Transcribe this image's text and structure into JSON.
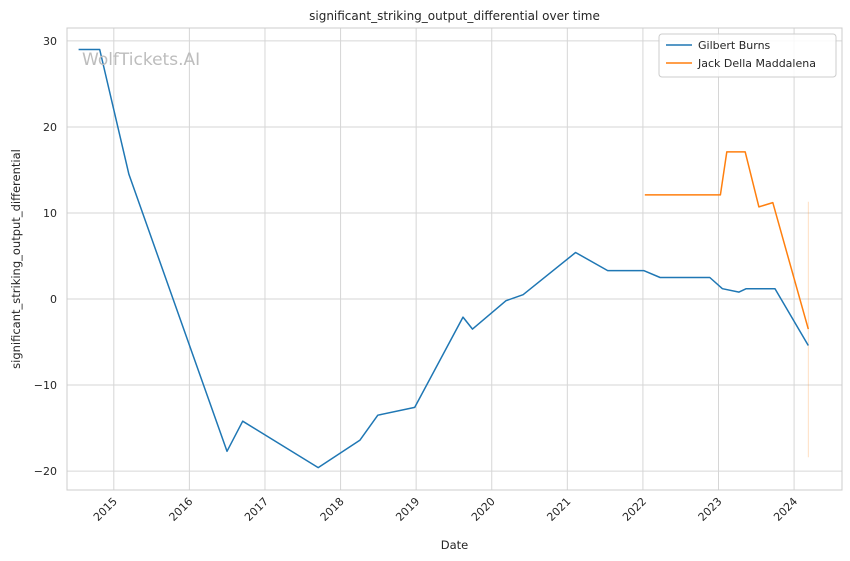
{
  "chart_data": {
    "type": "line",
    "title": "significant_striking_output_differential over time",
    "xlabel": "Date",
    "ylabel": "significant_striking_output_differential",
    "watermark": "WolfTickets.AI",
    "x_ticks": [
      "2015",
      "2016",
      "2017",
      "2018",
      "2019",
      "2020",
      "2021",
      "2022",
      "2023",
      "2024"
    ],
    "y_ticks": [
      30,
      20,
      10,
      0,
      -10,
      -20
    ],
    "y_tick_labels": [
      "30",
      "20",
      "10",
      "0",
      "−10",
      "−20"
    ],
    "xlim": [
      "2014-05-20",
      "2024-08-20"
    ],
    "ylim": [
      -22.2,
      31.5
    ],
    "grid": true,
    "legend_position": "top-right",
    "series": [
      {
        "name": "Gilbert Burns",
        "color": "#1f77b4",
        "points": [
          [
            "2014-07-15",
            29
          ],
          [
            "2014-10-25",
            29
          ],
          [
            "2015-03-15",
            14.5
          ],
          [
            "2016-07-01",
            -17.7
          ],
          [
            "2016-09-15",
            -14.2
          ],
          [
            "2017-09-15",
            -19.6
          ],
          [
            "2018-04-05",
            -16.4
          ],
          [
            "2018-06-30",
            -13.5
          ],
          [
            "2018-12-25",
            -12.6
          ],
          [
            "2019-08-15",
            -2.1
          ],
          [
            "2019-09-30",
            -3.5
          ],
          [
            "2020-03-10",
            -0.2
          ],
          [
            "2020-06-01",
            0.5
          ],
          [
            "2021-02-10",
            5.4
          ],
          [
            "2021-07-15",
            3.3
          ],
          [
            "2022-01-05",
            3.3
          ],
          [
            "2022-03-25",
            2.5
          ],
          [
            "2022-11-20",
            2.5
          ],
          [
            "2023-01-20",
            1.2
          ],
          [
            "2023-04-10",
            0.8
          ],
          [
            "2023-05-15",
            1.2
          ],
          [
            "2023-10-01",
            1.2
          ],
          [
            "2024-03-10",
            -5.4
          ]
        ]
      },
      {
        "name": "Jack Della Maddalena",
        "color": "#ff7f0e",
        "points": [
          [
            "2022-01-10",
            12.1
          ],
          [
            "2022-03-15",
            12.1
          ],
          [
            "2023-01-10",
            12.1
          ],
          [
            "2023-02-10",
            17.1
          ],
          [
            "2023-05-10",
            17.1
          ],
          [
            "2023-07-15",
            10.7
          ],
          [
            "2023-09-20",
            11.2
          ],
          [
            "2024-03-10",
            -3.5
          ]
        ]
      }
    ],
    "error_band": {
      "x": "2024-03-10",
      "y_range": [
        -18.4,
        11.3
      ],
      "color": "#ff7f0e"
    }
  }
}
